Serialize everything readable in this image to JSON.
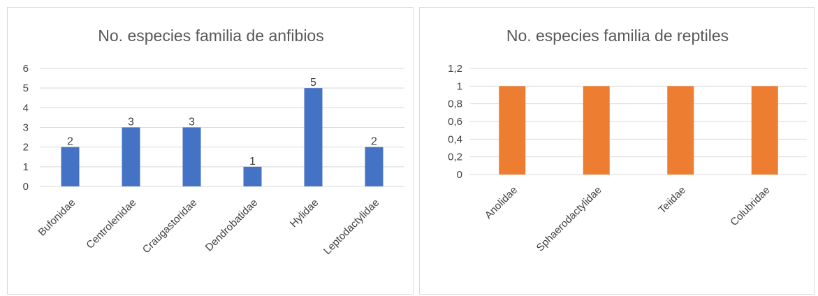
{
  "chart_data": [
    {
      "type": "bar",
      "title": "No. especies familia de anfibios",
      "categories": [
        "Bufonidae",
        "Centrolenidae",
        "Craugastoridae",
        "Dendrobatidae",
        "Hylidae",
        "Leptodactylidae"
      ],
      "values": [
        2,
        3,
        3,
        1,
        5,
        2
      ],
      "y_ticks": [
        "0",
        "1",
        "2",
        "3",
        "4",
        "5",
        "6"
      ],
      "ylim": [
        0,
        6
      ],
      "data_labels": [
        "2",
        "3",
        "3",
        "1",
        "5",
        "2"
      ],
      "grid": true,
      "legend": "none",
      "color": "#4472C4",
      "xlabel": "",
      "ylabel": ""
    },
    {
      "type": "bar",
      "title": "No. especies familia de reptiles",
      "categories": [
        "Anolidae",
        "Sphaerodactylidae",
        "Teiidae",
        "Colubridae"
      ],
      "values": [
        1,
        1,
        1,
        1
      ],
      "y_ticks": [
        "0",
        "0,2",
        "0,4",
        "0,6",
        "0,8",
        "1",
        "1,2"
      ],
      "ylim": [
        0,
        1.2
      ],
      "grid": true,
      "legend": "none",
      "color": "#ED7D31",
      "xlabel": "",
      "ylabel": ""
    }
  ]
}
